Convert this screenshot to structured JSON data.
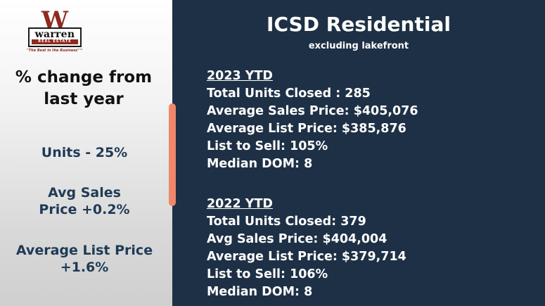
{
  "logo": {
    "letter": "W",
    "name": "warren",
    "band": "REAL ESTATE",
    "tagline": "\"The Best in the Business\"™"
  },
  "left_panel": {
    "heading": "% change from last year",
    "stats": [
      "Units - 25%",
      "Avg Sales Price +0.2%",
      "Average List Price +1.6%"
    ]
  },
  "right_panel": {
    "title": "ICSD Residential",
    "subtitle": "excluding lakefront",
    "sections": [
      {
        "header": "2023 YTD",
        "lines": [
          "Total Units Closed :  285",
          "Average Sales Price: $405,076",
          "Average List Price: $385,876",
          "List to Sell: 105%",
          "Median DOM: 8"
        ]
      },
      {
        "header": "2022 YTD",
        "lines": [
          "Total Units Closed: 379",
          "Avg Sales Price: $404,004",
          "Average List Price: $379,714",
          "List to Sell: 106%",
          "Median DOM: 8"
        ]
      }
    ]
  },
  "colors": {
    "background": "#1e3045",
    "accent": "#f0876b",
    "brand": "#8e2a1f",
    "stat_text": "#1f3a56"
  }
}
